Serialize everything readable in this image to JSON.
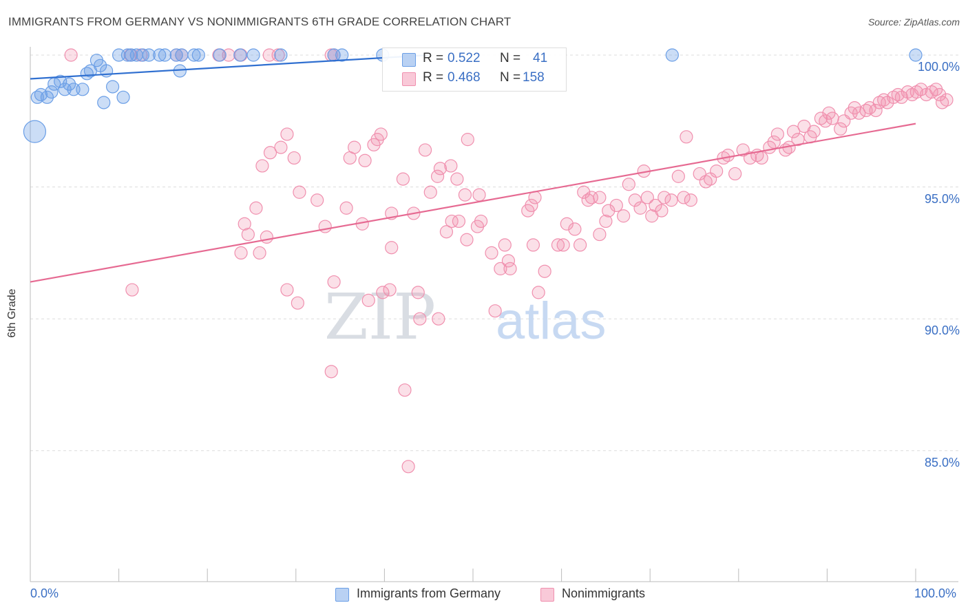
{
  "title": "IMMIGRANTS FROM GERMANY VS NONIMMIGRANTS 6TH GRADE CORRELATION CHART",
  "source": "Source: ZipAtlas.com",
  "watermark": {
    "zip": "ZIP",
    "atlas": "atlas"
  },
  "legend": {
    "r_label": "R =",
    "n_label": "N =",
    "series1": {
      "r": "0.522",
      "n": "41"
    },
    "series2": {
      "r": "0.468",
      "n": "158"
    }
  },
  "bottom_legend": {
    "series1": "Immigrants from Germany",
    "series2": "Nonimmigrants"
  },
  "chart_data": {
    "type": "scatter",
    "title": "IMMIGRANTS FROM GERMANY VS NONIMMIGRANTS 6TH GRADE CORRELATION CHART",
    "xlabel": "",
    "ylabel": "6th Grade",
    "xlim": [
      0,
      100
    ],
    "ylim": [
      80.5,
      100.8
    ],
    "x_tick_labels": [
      "0.0%",
      "100.0%"
    ],
    "y_ticks": [
      {
        "value": 100,
        "label": "100.0%"
      },
      {
        "value": 95,
        "label": "95.0%"
      },
      {
        "value": 90,
        "label": "90.0%"
      },
      {
        "value": 85,
        "label": "85.0%"
      }
    ],
    "colors": {
      "series1": "#6a9ee6",
      "series2": "#f08fae",
      "line1": "#2f6fd0",
      "line2": "#e66a92"
    },
    "series": [
      {
        "name": "Immigrants from Germany",
        "r": 0.522,
        "n": 41,
        "trend": {
          "x": [
            0,
            45
          ],
          "y": [
            99.1,
            100.0
          ]
        },
        "points": [
          [
            0.5,
            97.1
          ],
          [
            0.8,
            98.4
          ],
          [
            1.2,
            98.5
          ],
          [
            1.9,
            98.4
          ],
          [
            2.4,
            98.6
          ],
          [
            2.7,
            98.9
          ],
          [
            3.4,
            99.0
          ],
          [
            3.9,
            98.7
          ],
          [
            4.4,
            98.9
          ],
          [
            4.9,
            98.7
          ],
          [
            5.9,
            98.7
          ],
          [
            6.4,
            99.3
          ],
          [
            6.8,
            99.4
          ],
          [
            7.5,
            99.8
          ],
          [
            7.9,
            99.6
          ],
          [
            8.6,
            99.4
          ],
          [
            8.3,
            98.2
          ],
          [
            9.3,
            98.8
          ],
          [
            10.5,
            98.4
          ],
          [
            10.0,
            100.0
          ],
          [
            11.0,
            100.0
          ],
          [
            11.4,
            100.0
          ],
          [
            12.0,
            100.0
          ],
          [
            12.7,
            100.0
          ],
          [
            13.4,
            100.0
          ],
          [
            14.6,
            100.0
          ],
          [
            15.2,
            100.0
          ],
          [
            16.5,
            100.0
          ],
          [
            16.9,
            99.4
          ],
          [
            17.1,
            100.0
          ],
          [
            18.5,
            100.0
          ],
          [
            19.0,
            100.0
          ],
          [
            21.4,
            100.0
          ],
          [
            23.7,
            100.0
          ],
          [
            25.2,
            100.0
          ],
          [
            28.3,
            100.0
          ],
          [
            34.3,
            100.0
          ],
          [
            35.2,
            100.0
          ],
          [
            39.8,
            100.0
          ],
          [
            72.5,
            100.0
          ],
          [
            100.0,
            100.0
          ]
        ]
      },
      {
        "name": "Nonimmigrants",
        "r": 0.468,
        "n": 158,
        "trend": {
          "x": [
            0,
            100
          ],
          "y": [
            91.4,
            97.4
          ]
        },
        "points": [
          [
            4.6,
            100.0
          ],
          [
            11.3,
            100.0
          ],
          [
            12.5,
            100.0
          ],
          [
            16.5,
            100.0
          ],
          [
            17.1,
            100.0
          ],
          [
            21.3,
            100.0
          ],
          [
            22.4,
            100.0
          ],
          [
            23.8,
            100.0
          ],
          [
            27.0,
            100.0
          ],
          [
            28.0,
            100.0
          ],
          [
            34.0,
            100.0
          ],
          [
            34.3,
            100.0
          ],
          [
            11.5,
            91.1
          ],
          [
            24.2,
            93.6
          ],
          [
            24.6,
            93.2
          ],
          [
            25.5,
            94.2
          ],
          [
            23.8,
            92.5
          ],
          [
            25.9,
            92.5
          ],
          [
            26.2,
            95.8
          ],
          [
            26.7,
            93.1
          ],
          [
            27.1,
            96.3
          ],
          [
            28.3,
            96.5
          ],
          [
            29.0,
            97.0
          ],
          [
            29.8,
            96.1
          ],
          [
            30.4,
            94.8
          ],
          [
            29.0,
            91.1
          ],
          [
            30.2,
            90.6
          ],
          [
            32.4,
            94.5
          ],
          [
            33.3,
            93.5
          ],
          [
            34.3,
            91.4
          ],
          [
            34.0,
            88.0
          ],
          [
            35.7,
            94.2
          ],
          [
            36.1,
            96.1
          ],
          [
            36.6,
            96.5
          ],
          [
            37.5,
            93.6
          ],
          [
            37.8,
            96.0
          ],
          [
            38.8,
            96.6
          ],
          [
            39.2,
            96.8
          ],
          [
            39.6,
            97.0
          ],
          [
            38.2,
            90.7
          ],
          [
            39.8,
            91.0
          ],
          [
            40.6,
            91.1
          ],
          [
            40.8,
            92.7
          ],
          [
            40.8,
            94.0
          ],
          [
            42.1,
            95.3
          ],
          [
            43.3,
            94.0
          ],
          [
            42.3,
            87.3
          ],
          [
            42.7,
            84.4
          ],
          [
            43.8,
            91.0
          ],
          [
            44.0,
            90.0
          ],
          [
            45.2,
            94.8
          ],
          [
            46.0,
            95.4
          ],
          [
            46.3,
            95.7
          ],
          [
            46.1,
            90.0
          ],
          [
            47.0,
            93.3
          ],
          [
            47.6,
            93.7
          ],
          [
            48.4,
            93.7
          ],
          [
            48.2,
            95.3
          ],
          [
            49.1,
            94.7
          ],
          [
            50.7,
            94.7
          ],
          [
            49.4,
            96.8
          ],
          [
            50.9,
            93.7
          ],
          [
            49.3,
            93.0
          ],
          [
            50.5,
            93.5
          ],
          [
            52.1,
            92.5
          ],
          [
            52.5,
            90.3
          ],
          [
            53.1,
            91.9
          ],
          [
            53.6,
            92.8
          ],
          [
            54.0,
            92.2
          ],
          [
            54.2,
            91.9
          ],
          [
            56.2,
            94.1
          ],
          [
            56.6,
            94.3
          ],
          [
            57.0,
            94.6
          ],
          [
            56.8,
            92.8
          ],
          [
            57.4,
            91.0
          ],
          [
            58.1,
            91.8
          ],
          [
            59.6,
            92.8
          ],
          [
            60.2,
            92.8
          ],
          [
            60.6,
            93.6
          ],
          [
            61.5,
            93.4
          ],
          [
            62.1,
            92.8
          ],
          [
            62.5,
            94.8
          ],
          [
            63.0,
            94.5
          ],
          [
            63.4,
            94.6
          ],
          [
            64.3,
            93.2
          ],
          [
            65.0,
            93.7
          ],
          [
            65.3,
            94.1
          ],
          [
            66.2,
            94.3
          ],
          [
            67.0,
            93.9
          ],
          [
            67.6,
            95.1
          ],
          [
            68.3,
            94.5
          ],
          [
            68.9,
            94.2
          ],
          [
            69.7,
            94.6
          ],
          [
            70.2,
            93.9
          ],
          [
            70.6,
            94.3
          ],
          [
            71.3,
            94.1
          ],
          [
            71.6,
            94.6
          ],
          [
            72.4,
            94.5
          ],
          [
            73.2,
            95.4
          ],
          [
            73.8,
            94.6
          ],
          [
            74.6,
            94.5
          ],
          [
            75.6,
            95.5
          ],
          [
            76.3,
            95.2
          ],
          [
            76.8,
            95.3
          ],
          [
            77.5,
            95.6
          ],
          [
            78.3,
            96.1
          ],
          [
            78.8,
            96.2
          ],
          [
            79.6,
            95.5
          ],
          [
            80.5,
            96.4
          ],
          [
            81.3,
            96.1
          ],
          [
            82.1,
            96.2
          ],
          [
            82.6,
            96.1
          ],
          [
            83.5,
            96.5
          ],
          [
            84.0,
            96.7
          ],
          [
            84.4,
            97.0
          ],
          [
            85.3,
            96.4
          ],
          [
            85.7,
            96.5
          ],
          [
            86.2,
            97.1
          ],
          [
            86.7,
            96.8
          ],
          [
            87.4,
            97.3
          ],
          [
            88.1,
            96.9
          ],
          [
            88.5,
            97.1
          ],
          [
            89.3,
            97.6
          ],
          [
            89.8,
            97.5
          ],
          [
            90.2,
            97.8
          ],
          [
            90.6,
            97.6
          ],
          [
            91.5,
            97.2
          ],
          [
            91.9,
            97.5
          ],
          [
            92.7,
            97.8
          ],
          [
            93.1,
            98.0
          ],
          [
            93.6,
            97.8
          ],
          [
            94.4,
            97.9
          ],
          [
            94.8,
            98.0
          ],
          [
            95.5,
            97.9
          ],
          [
            95.9,
            98.2
          ],
          [
            96.4,
            98.3
          ],
          [
            96.8,
            98.2
          ],
          [
            97.5,
            98.4
          ],
          [
            98.0,
            98.5
          ],
          [
            98.4,
            98.4
          ],
          [
            99.1,
            98.6
          ],
          [
            99.6,
            98.5
          ],
          [
            100.1,
            98.6
          ],
          [
            100.6,
            98.7
          ],
          [
            101.2,
            98.5
          ],
          [
            101.8,
            98.6
          ],
          [
            102.3,
            98.7
          ],
          [
            102.7,
            98.5
          ],
          [
            103.0,
            98.2
          ],
          [
            103.5,
            98.3
          ],
          [
            64.3,
            94.6
          ],
          [
            74.1,
            96.9
          ],
          [
            69.3,
            95.6
          ],
          [
            44.6,
            96.4
          ],
          [
            47.5,
            95.8
          ]
        ]
      }
    ]
  }
}
